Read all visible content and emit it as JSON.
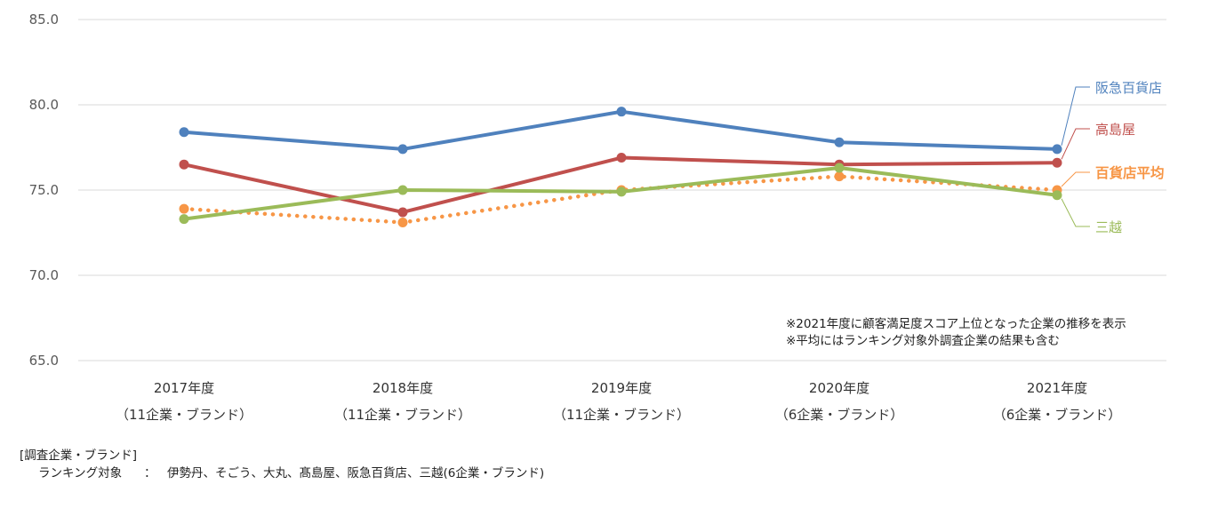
{
  "chart_data": {
    "type": "line",
    "categories": [
      "2017年度",
      "2018年度",
      "2019年度",
      "2020年度",
      "2021年度"
    ],
    "category_sublabels": [
      "（11企業・ブランド）",
      "（11企業・ブランド）",
      "（11企業・ブランド）",
      "（6企業・ブランド）",
      "（6企業・ブランド）"
    ],
    "ylim": [
      65.0,
      85.0
    ],
    "yticks": [
      "65.0",
      "70.0",
      "75.0",
      "80.0",
      "85.0"
    ],
    "grid": true,
    "series": [
      {
        "name": "阪急百貨店",
        "color": "#4f81bd",
        "style": "solid",
        "values": [
          78.4,
          77.4,
          79.6,
          77.8,
          77.4
        ]
      },
      {
        "name": "高島屋",
        "color": "#c0504d",
        "style": "solid",
        "values": [
          76.5,
          73.7,
          76.9,
          76.5,
          76.6
        ]
      },
      {
        "name": "百貨店平均",
        "color": "#f79646",
        "style": "dotted",
        "bold_label": true,
        "values": [
          73.9,
          73.1,
          75.0,
          75.8,
          75.0
        ]
      },
      {
        "name": "三越",
        "color": "#9bbb59",
        "style": "solid",
        "values": [
          73.3,
          75.0,
          74.9,
          76.3,
          74.7
        ]
      }
    ]
  },
  "notes": [
    "※2021年度に顧客満足度スコア上位となった企業の推移を表示",
    "※平均にはランキング対象外調査企業の結果も含む"
  ],
  "footer": {
    "heading": "[調査企業・ブランド]",
    "label": "ランキング対象",
    "separator": "：",
    "value": "伊勢丹、そごう、大丸、髙島屋、阪急百貨店、三越(6企業・ブランド)"
  }
}
